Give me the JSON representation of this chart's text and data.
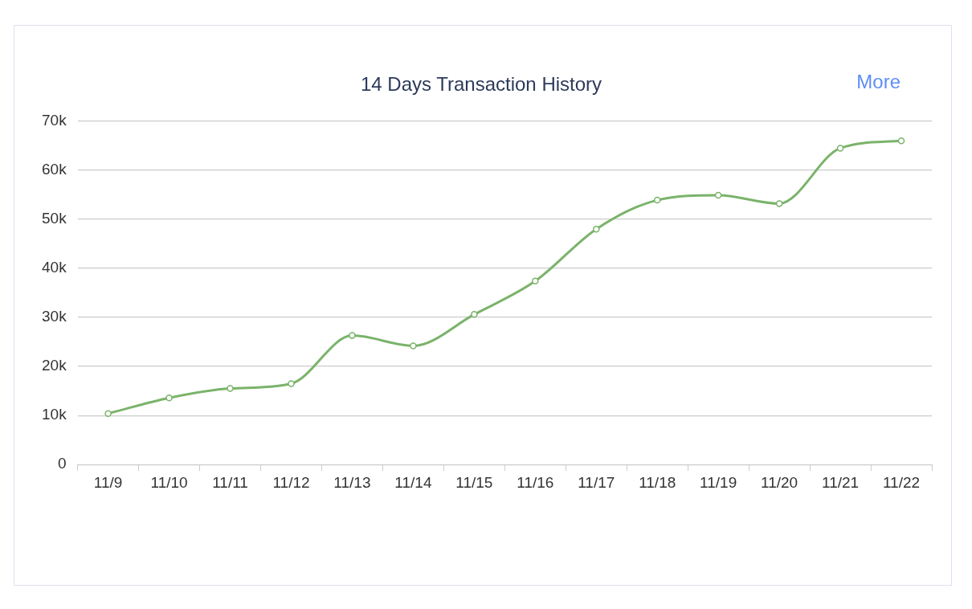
{
  "chart_data": {
    "type": "line",
    "title": "14 Days Transaction History",
    "annotations": [
      "More"
    ],
    "categories": [
      "11/9",
      "11/10",
      "11/11",
      "11/12",
      "11/13",
      "11/14",
      "11/15",
      "11/16",
      "11/17",
      "11/18",
      "11/19",
      "11/20",
      "11/21",
      "11/22"
    ],
    "series": [
      {
        "color": "#7ab36a",
        "values": [
          10400,
          13600,
          15500,
          16500,
          26300,
          24200,
          30600,
          37400,
          48000,
          53900,
          54900,
          53200,
          64500,
          66000
        ]
      }
    ],
    "ylim": [
      0,
      70000
    ],
    "yticks": [
      0,
      {
        "value": 10000,
        "label": "10k"
      },
      {
        "value": 20000,
        "label": "20k"
      },
      {
        "value": 30000,
        "label": "30k"
      },
      {
        "value": 40000,
        "label": "40k"
      },
      {
        "value": 50000,
        "label": "50k"
      },
      {
        "value": 60000,
        "label": "60k"
      },
      {
        "value": 70000,
        "label": "70k"
      }
    ],
    "grid": "y",
    "legend": false,
    "marker": "circle",
    "line_style": "solid"
  }
}
